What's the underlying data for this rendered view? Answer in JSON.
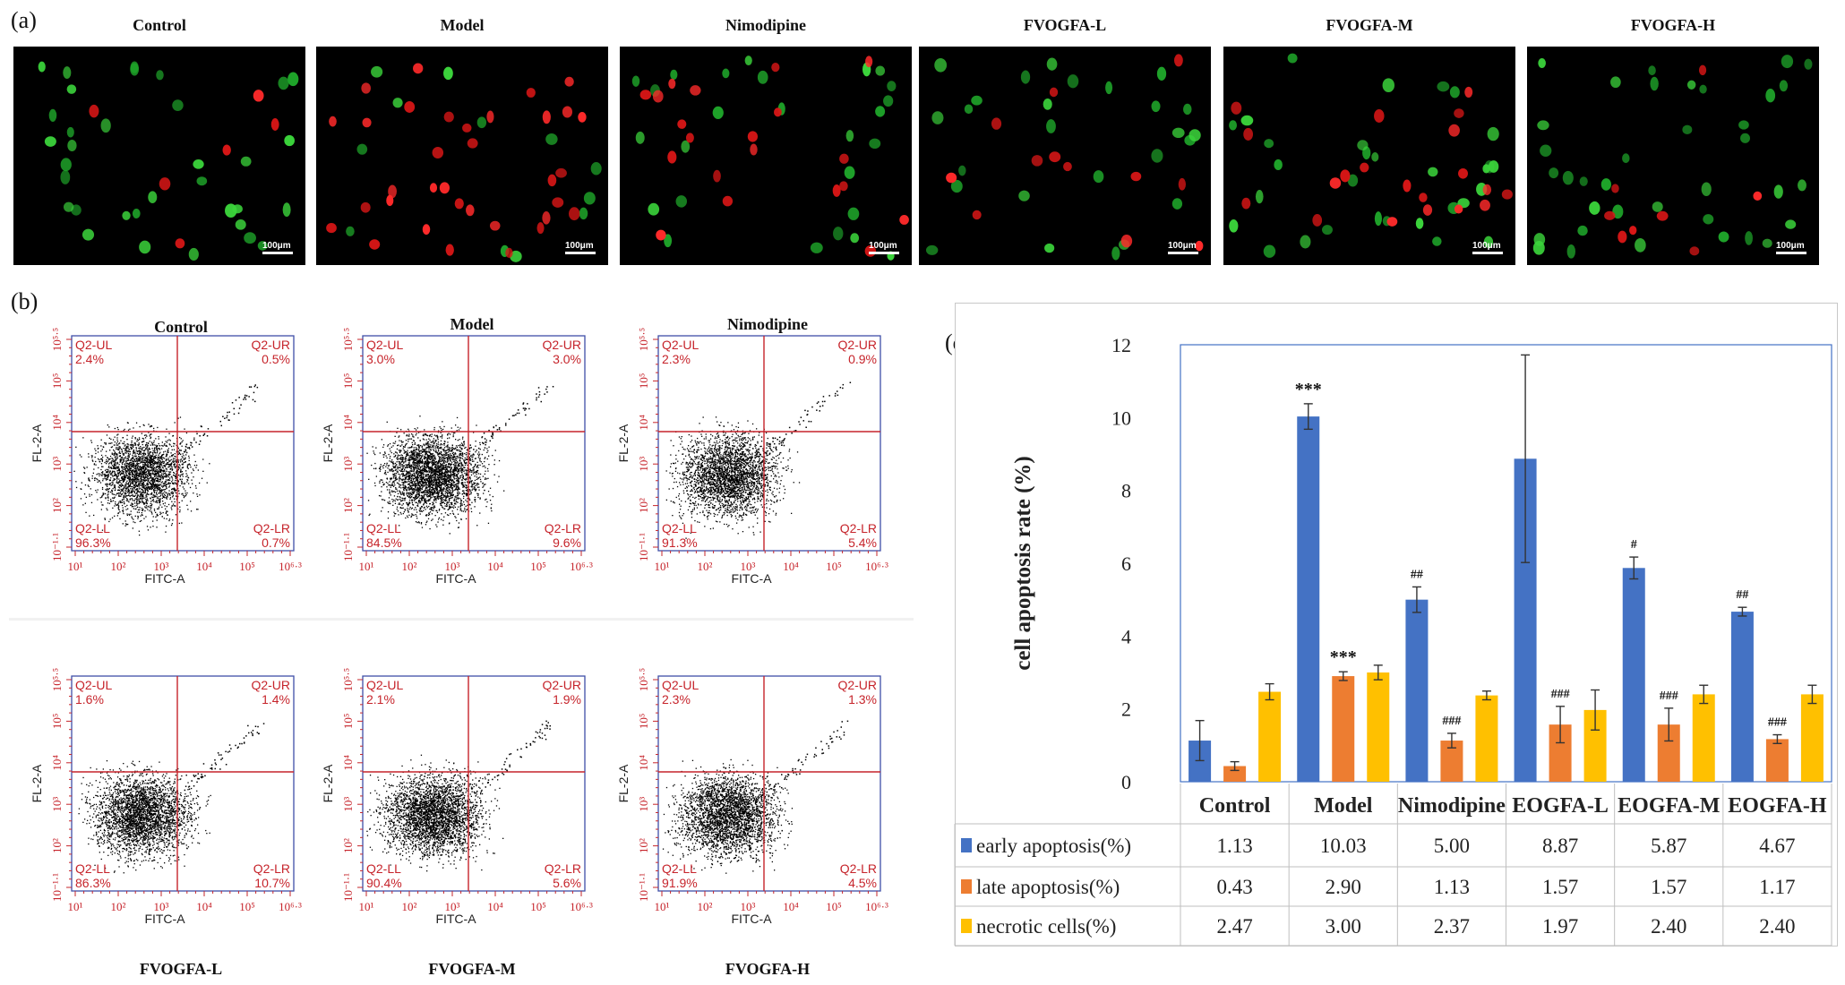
{
  "panel_labels": {
    "a": "(a)",
    "b": "(b)",
    "c": "(c)"
  },
  "micrographs": [
    {
      "title": "Control",
      "scale": "100μm"
    },
    {
      "title": "Model",
      "scale": "100μm"
    },
    {
      "title": "Nimodipine",
      "scale": "100μm"
    },
    {
      "title": "FVOGFA-L",
      "scale": "100μm"
    },
    {
      "title": "FVOGFA-M",
      "scale": "100μm"
    },
    {
      "title": "FVOGFA-H",
      "scale": "100μm"
    }
  ],
  "flow": {
    "x_axis": "FITC-A",
    "y_axis": "FL-2-A",
    "x_ticks": [
      "10¹",
      "10²",
      "10³",
      "10⁴",
      "10⁵",
      "10⁶·³"
    ],
    "y_ticks": [
      "10⁻¹·¹",
      "10²",
      "10³",
      "10⁴",
      "10⁵",
      "10⁵·⁵"
    ],
    "quadrant_names": {
      "ul": "Q2-UL",
      "ur": "Q2-UR",
      "ll": "Q2-LL",
      "lr": "Q2-LR"
    },
    "plots": [
      {
        "title": "Control",
        "ul": "2.4%",
        "ur": "0.5%",
        "ll": "96.3%",
        "lr": "0.7%"
      },
      {
        "title": "Model",
        "ul": "3.0%",
        "ur": "3.0%",
        "ll": "84.5%",
        "lr": "9.6%"
      },
      {
        "title": "Nimodipine",
        "ul": "2.3%",
        "ur": "0.9%",
        "ll": "91.3%",
        "lr": "5.4%"
      },
      {
        "title": "FVOGFA-L",
        "ul": "1.6%",
        "ur": "1.4%",
        "ll": "86.3%",
        "lr": "10.7%"
      },
      {
        "title": "FVOGFA-M",
        "ul": "2.1%",
        "ur": "1.9%",
        "ll": "90.4%",
        "lr": "5.6%"
      },
      {
        "title": "FVOGFA-H",
        "ul": "2.3%",
        "ur": "1.3%",
        "ll": "91.9%",
        "lr": "4.5%"
      }
    ]
  },
  "colors": {
    "early": "#4472c4",
    "late": "#ed7d31",
    "necrotic": "#ffc000",
    "flow_red": "#c6242b"
  },
  "chart_data": {
    "type": "bar",
    "title": "",
    "ylabel": "cell apoptosis rate (%)",
    "xlabel": "",
    "ylim": [
      0,
      12
    ],
    "yticks": [
      0,
      2,
      4,
      6,
      8,
      10,
      12
    ],
    "categories": [
      "Control",
      "Model",
      "Nimodipine",
      "EOGFA-L",
      "EOGFA-M",
      "EOGFA-H"
    ],
    "series": [
      {
        "name": "early apoptosis(%)",
        "values": [
          1.13,
          10.03,
          5.0,
          8.87,
          5.87,
          4.67
        ],
        "errors": [
          0.55,
          0.35,
          0.35,
          2.85,
          0.3,
          0.12
        ],
        "annotations": [
          "",
          "***",
          "##",
          "",
          "#",
          "##"
        ]
      },
      {
        "name": "late apoptosis(%)",
        "values": [
          0.43,
          2.9,
          1.13,
          1.57,
          1.57,
          1.17
        ],
        "errors": [
          0.12,
          0.12,
          0.2,
          0.5,
          0.45,
          0.12
        ],
        "annotations": [
          "",
          "***",
          "###",
          "###",
          "###",
          "###"
        ]
      },
      {
        "name": "necrotic cells(%)",
        "values": [
          2.47,
          3.0,
          2.37,
          1.97,
          2.4,
          2.4
        ],
        "errors": [
          0.22,
          0.2,
          0.12,
          0.55,
          0.25,
          0.25
        ],
        "annotations": [
          "",
          "",
          "",
          "",
          "",
          ""
        ]
      }
    ],
    "table_values": [
      [
        "1.13",
        "10.03",
        "5.00",
        "8.87",
        "5.87",
        "4.67"
      ],
      [
        "0.43",
        "2.90",
        "1.13",
        "1.57",
        "1.57",
        "1.17"
      ],
      [
        "2.47",
        "3.00",
        "2.37",
        "1.97",
        "2.40",
        "2.40"
      ]
    ]
  }
}
